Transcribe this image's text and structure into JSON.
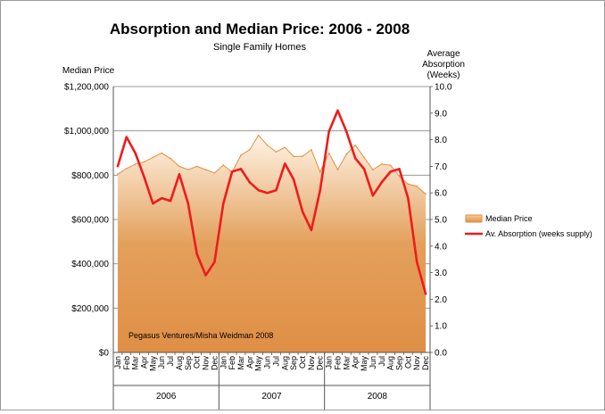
{
  "chart_data": {
    "type": "area",
    "title": "Absorption and Median Price:  2006 - 2008",
    "subtitle": "Single Family Homes",
    "left_axis": {
      "label": "Median Price",
      "range": [
        0,
        1200000
      ],
      "ticks": [
        "$0",
        "$200,000",
        "$400,000",
        "$600,000",
        "$800,000",
        "$1,000,000",
        "$1,200,000"
      ]
    },
    "right_axis": {
      "label_lines": [
        "Average",
        "Absorption",
        "(Weeks)"
      ],
      "range": [
        0,
        10
      ],
      "ticks": [
        "0.0",
        "1.0",
        "2.0",
        "3.0",
        "4.0",
        "5.0",
        "6.0",
        "7.0",
        "8.0",
        "9.0",
        "10.0"
      ]
    },
    "years": [
      "2006",
      "2007",
      "2008"
    ],
    "months": [
      "Jan",
      "Feb",
      "Mar",
      "Apr",
      "May",
      "Jun",
      "Jul",
      "Aug",
      "Sep",
      "Oct",
      "Nov",
      "Dec"
    ],
    "grid": "horizontal",
    "legend_position": "right",
    "series": [
      {
        "name": "Median Price",
        "kind": "area",
        "axis": "left",
        "color": "#e08f45",
        "values": [
          805000,
          830000,
          850000,
          860000,
          880000,
          900000,
          875000,
          840000,
          825000,
          840000,
          825000,
          810000,
          845000,
          815000,
          890000,
          915000,
          980000,
          935000,
          905000,
          925000,
          885000,
          885000,
          915000,
          815000,
          900000,
          825000,
          895000,
          935000,
          880000,
          825000,
          850000,
          845000,
          795000,
          760000,
          750000,
          715000
        ]
      },
      {
        "name": "Av.  Absorption (weeks supply)",
        "kind": "line",
        "axis": "right",
        "color": "#ee1c1c",
        "values": [
          7.0,
          8.1,
          7.5,
          6.6,
          5.6,
          5.8,
          5.7,
          6.7,
          5.6,
          3.7,
          2.9,
          3.4,
          5.6,
          6.8,
          6.9,
          6.4,
          6.1,
          6.0,
          6.1,
          7.1,
          6.5,
          5.3,
          4.6,
          6.1,
          8.3,
          9.1,
          8.3,
          7.3,
          6.9,
          5.9,
          6.4,
          6.8,
          6.9,
          5.8,
          3.4,
          2.2
        ]
      }
    ],
    "credit": "Pegasus Ventures/Misha Weidman 2008"
  }
}
